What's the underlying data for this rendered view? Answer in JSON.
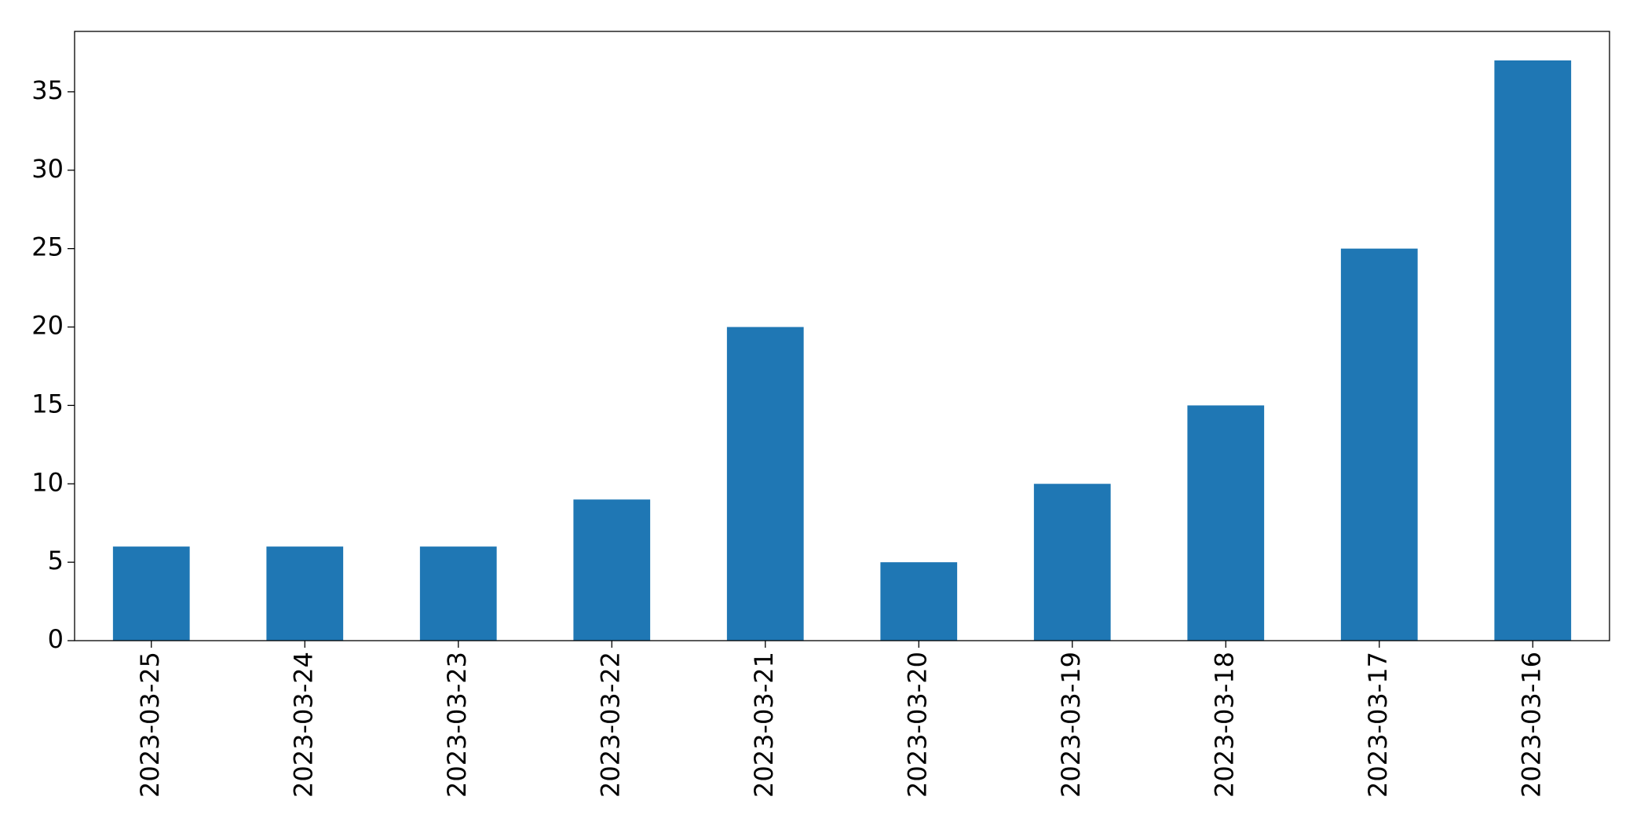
{
  "chart_data": {
    "type": "bar",
    "categories": [
      "2023-03-25",
      "2023-03-24",
      "2023-03-23",
      "2023-03-22",
      "2023-03-21",
      "2023-03-20",
      "2023-03-19",
      "2023-03-18",
      "2023-03-17",
      "2023-03-16"
    ],
    "values": [
      6,
      6,
      6,
      9,
      20,
      5,
      10,
      15,
      25,
      37
    ],
    "color": "#1f77b4",
    "ylim": [
      0,
      38.85
    ],
    "yticks": [
      0,
      5,
      10,
      15,
      20,
      25,
      30,
      35
    ],
    "grid": false
  }
}
